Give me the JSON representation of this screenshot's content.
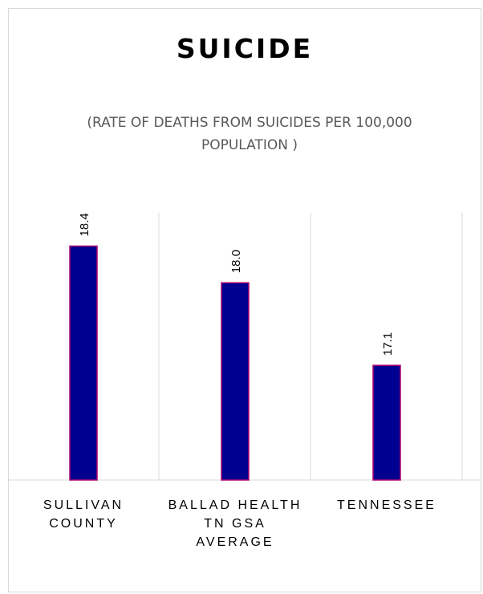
{
  "chart_data": {
    "type": "bar",
    "title": "SUICIDE",
    "subtitle": "(RATE OF DEATHS FROM SUICIDES PER 100,000 POPULATION )",
    "categories": [
      [
        "SULLIVAN",
        "COUNTY"
      ],
      [
        "BALLAD HEALTH",
        "TN GSA",
        "AVERAGE"
      ],
      [
        "TENNESSEE"
      ]
    ],
    "values": [
      18.4,
      18.0,
      17.1
    ],
    "value_labels": [
      "18.4",
      "18.0",
      "17.1"
    ],
    "ylim": [
      15.85,
      18.65
    ],
    "xlabel": "",
    "ylabel": "",
    "grid": "vertical category separators",
    "colors": {
      "bar_fill": "#000090",
      "bar_stroke": "#b0006f",
      "grid": "#d9d9d9",
      "text": "#000000",
      "subtitle": "#595959"
    }
  }
}
